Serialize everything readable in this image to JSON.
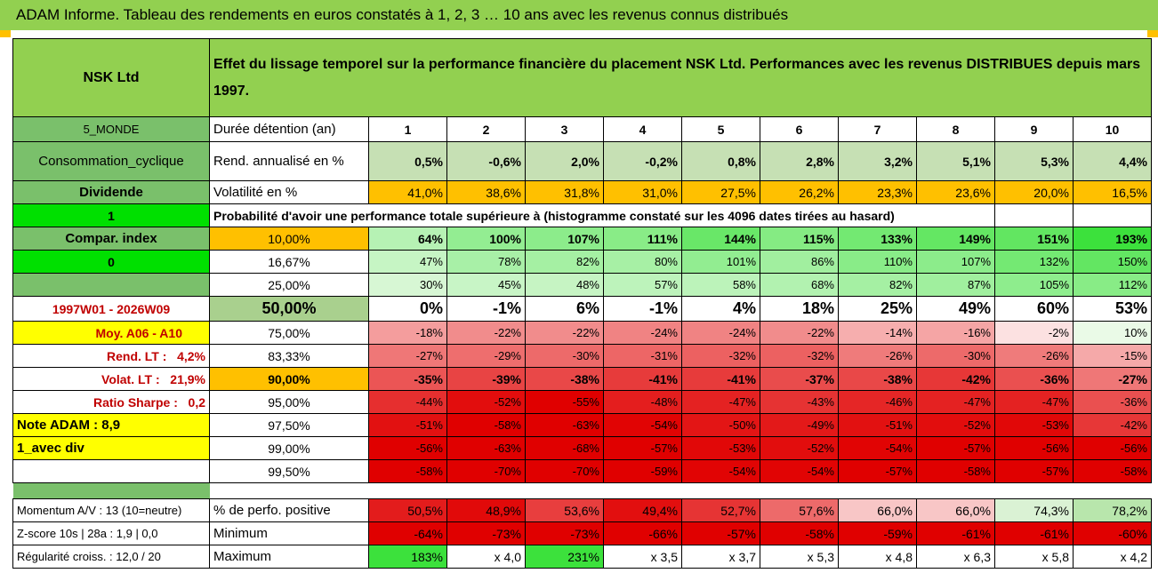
{
  "title": "ADAM Informe. Tableau des rendements en euros constatés à 1, 2, 3 … 10 ans avec les revenus connus distribués",
  "header": {
    "name": "NSK Ltd",
    "description": "Effet du lissage temporel sur la performance financière du placement NSK Ltd. Performances avec les revenus DISTRIBUES depuis mars 1997."
  },
  "side": {
    "region": "5_MONDE",
    "sector": "Consommation_cyclique",
    "dividend_label": "Dividende",
    "one": "1",
    "compar": "Compar. index",
    "zero": "0",
    "period": "1997W01 - 2026W09",
    "moy": "Moy. A06 - A10",
    "rend_lt_label": "Rend. LT :",
    "rend_lt_value": "4,2%",
    "volat_lt_label": "Volat. LT :",
    "volat_lt_value": "21,9%",
    "sharpe_label": "Ratio Sharpe :",
    "sharpe_value": "0,2",
    "note": "Note ADAM : 8,9",
    "avec_div": "1_avec div",
    "momentum": "Momentum A/V : 13 (10=neutre)",
    "zscore": "Z-score 10s | 28a : 1,9 | 0,0",
    "regularite": "Régularité croiss. : 12,0 / 20"
  },
  "labels": {
    "duree": "Durée détention (an)",
    "rend": "Rend. annualisé en %",
    "volat": "Volatilité en %",
    "proba": "Probabilité d'avoir une performance totale supérieure à (histogramme constaté sur les 4096 dates tirées au hasard)",
    "positive": "% de perfo. positive",
    "minimum": "Minimum",
    "maximum": "Maximum"
  },
  "years": [
    "1",
    "2",
    "3",
    "4",
    "5",
    "6",
    "7",
    "8",
    "9",
    "10"
  ],
  "rend": [
    "0,5%",
    "-0,6%",
    "2,0%",
    "-0,2%",
    "0,8%",
    "2,8%",
    "3,2%",
    "5,1%",
    "5,3%",
    "4,4%"
  ],
  "volat": [
    "41,0%",
    "38,6%",
    "31,8%",
    "31,0%",
    "27,5%",
    "26,2%",
    "23,3%",
    "23,6%",
    "20,0%",
    "16,5%"
  ],
  "percentiles": [
    {
      "p": "10,00%",
      "v": [
        "64%",
        "100%",
        "107%",
        "111%",
        "144%",
        "115%",
        "133%",
        "149%",
        "151%",
        "193%"
      ]
    },
    {
      "p": "16,67%",
      "v": [
        "47%",
        "78%",
        "82%",
        "80%",
        "101%",
        "86%",
        "110%",
        "107%",
        "132%",
        "150%"
      ]
    },
    {
      "p": "25,00%",
      "v": [
        "30%",
        "45%",
        "48%",
        "57%",
        "58%",
        "68%",
        "82%",
        "87%",
        "105%",
        "112%"
      ]
    },
    {
      "p": "50,00%",
      "v": [
        "0%",
        "-1%",
        "6%",
        "-1%",
        "4%",
        "18%",
        "25%",
        "49%",
        "60%",
        "53%"
      ]
    },
    {
      "p": "75,00%",
      "v": [
        "-18%",
        "-22%",
        "-22%",
        "-24%",
        "-24%",
        "-22%",
        "-14%",
        "-16%",
        "-2%",
        "10%"
      ]
    },
    {
      "p": "83,33%",
      "v": [
        "-27%",
        "-29%",
        "-30%",
        "-31%",
        "-32%",
        "-32%",
        "-26%",
        "-30%",
        "-26%",
        "-15%"
      ]
    },
    {
      "p": "90,00%",
      "v": [
        "-35%",
        "-39%",
        "-38%",
        "-41%",
        "-41%",
        "-37%",
        "-38%",
        "-42%",
        "-36%",
        "-27%"
      ]
    },
    {
      "p": "95,00%",
      "v": [
        "-44%",
        "-52%",
        "-55%",
        "-48%",
        "-47%",
        "-43%",
        "-46%",
        "-47%",
        "-47%",
        "-36%"
      ]
    },
    {
      "p": "97,50%",
      "v": [
        "-51%",
        "-58%",
        "-63%",
        "-54%",
        "-50%",
        "-49%",
        "-51%",
        "-52%",
        "-53%",
        "-42%"
      ]
    },
    {
      "p": "99,00%",
      "v": [
        "-56%",
        "-63%",
        "-68%",
        "-57%",
        "-53%",
        "-52%",
        "-54%",
        "-57%",
        "-56%",
        "-56%"
      ]
    },
    {
      "p": "99,50%",
      "v": [
        "-58%",
        "-70%",
        "-70%",
        "-59%",
        "-54%",
        "-54%",
        "-57%",
        "-58%",
        "-57%",
        "-58%"
      ]
    }
  ],
  "positive": [
    "50,5%",
    "48,9%",
    "53,6%",
    "49,4%",
    "52,7%",
    "57,6%",
    "66,0%",
    "66,0%",
    "74,3%",
    "78,2%"
  ],
  "minimum": [
    "-64%",
    "-73%",
    "-73%",
    "-66%",
    "-57%",
    "-58%",
    "-59%",
    "-61%",
    "-61%",
    "-60%"
  ],
  "maximum": [
    "183%",
    "x 4,0",
    "231%",
    "x 3,5",
    "x 3,7",
    "x 5,3",
    "x 4,8",
    "x 6,3",
    "x 5,8",
    "x 4,2"
  ],
  "colors": {
    "header_green": "#92d050",
    "rend_bg": "#c6e0b4",
    "volat_bg": "#ffc000",
    "positive_high": "#3ce13c",
    "negative_low": "#e00000",
    "highlight_yellow": "#ffff00"
  }
}
